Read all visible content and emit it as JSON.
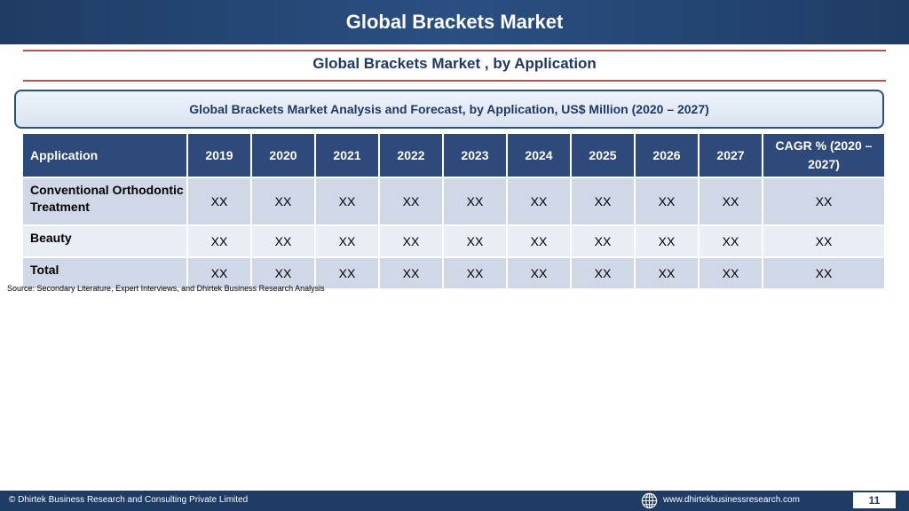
{
  "header": {
    "title": "Global Brackets Market"
  },
  "subtitle": "Global Brackets Market , by Application",
  "banner": "Global Brackets Market  Analysis and Forecast, by Application, US$ Million (2020 – 2027)",
  "table": {
    "headers": [
      "Application",
      "2019",
      "2020",
      "2021",
      "2022",
      "2023",
      "2024",
      "2025",
      "2026",
      "2027",
      "CAGR % (2020 – 2027)"
    ],
    "rows": [
      {
        "label": "Conventional Orthodontic Treatment",
        "cells": [
          "XX",
          "XX",
          "XX",
          "XX",
          "XX",
          "XX",
          "XX",
          "XX",
          "XX",
          "XX"
        ]
      },
      {
        "label": "Beauty",
        "cells": [
          "XX",
          "XX",
          "XX",
          "XX",
          "XX",
          "XX",
          "XX",
          "XX",
          "XX",
          "XX"
        ]
      },
      {
        "label": "Total",
        "cells": [
          "XX",
          "XX",
          "XX",
          "XX",
          "XX",
          "XX",
          "XX",
          "XX",
          "XX",
          "XX"
        ]
      }
    ]
  },
  "source": "Source: Secondary Literature, Expert Interviews, and Dhirtek Business Research Analysis",
  "footer": {
    "copyright": "© Dhirtek Business Research and Consulting Private Limited",
    "website": "www.dhirtekbusinessresearch.com",
    "page": "11",
    "icon": "globe-icon"
  },
  "colors": {
    "header_bg": "#1f3c64",
    "table_header_bg": "#2d4a7a",
    "row_dark": "#d0d8e8",
    "row_light": "#e9edf4",
    "accent_line": "#c0504d",
    "text_navy": "#1f3864"
  }
}
